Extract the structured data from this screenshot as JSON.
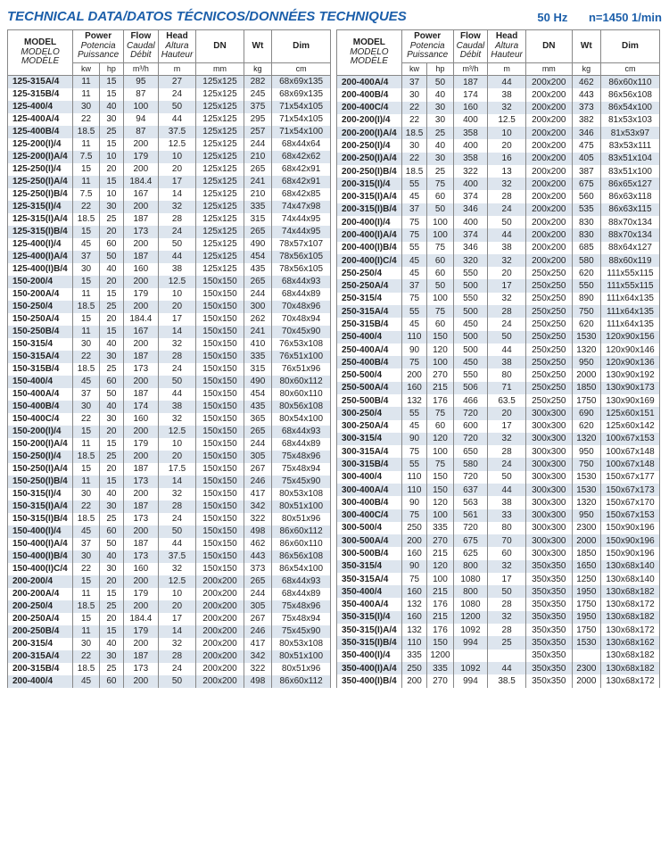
{
  "header": {
    "title": "TECHNICAL DATA/DATOS TÉCNICOS/DONNÉES TECHNIQUES",
    "freq": "50 Hz",
    "rpm": "n=1450 1/min"
  },
  "cols": {
    "model": {
      "en": "MODEL",
      "es": "MODELO",
      "fr": "MODÈLE"
    },
    "power": {
      "en": "Power",
      "es": "Potencia",
      "fr": "Puissance",
      "u1": "kw",
      "u2": "hp"
    },
    "flow": {
      "en": "Flow",
      "es": "Caudal",
      "fr": "Débit",
      "u": "m³/h"
    },
    "head": {
      "en": "Head",
      "es": "Altura",
      "fr": "Hauteur",
      "u": "m"
    },
    "dn": {
      "en": "DN",
      "u": "mm"
    },
    "wt": {
      "en": "Wt",
      "u": "kg"
    },
    "dim": {
      "en": "Dim",
      "u": "cm"
    }
  },
  "left": [
    [
      "125-315A/4",
      11,
      15,
      95,
      27,
      "125x125",
      282,
      "68x69x135"
    ],
    [
      "125-315B/4",
      11,
      15,
      87,
      24,
      "125x125",
      245,
      "68x69x135"
    ],
    [
      "125-400/4",
      30,
      40,
      100,
      50,
      "125x125",
      375,
      "71x54x105"
    ],
    [
      "125-400A/4",
      22,
      30,
      94,
      44,
      "125x125",
      295,
      "71x54x105"
    ],
    [
      "125-400B/4",
      18.5,
      25,
      87,
      37.5,
      "125x125",
      257,
      "71x54x100"
    ],
    [
      "125-200(I)/4",
      11,
      15,
      200,
      12.5,
      "125x125",
      244,
      "68x44x64"
    ],
    [
      "125-200(I)A/4",
      7.5,
      10,
      179,
      10,
      "125x125",
      210,
      "68x42x62"
    ],
    [
      "125-250(I)/4",
      15,
      20,
      200,
      20,
      "125x125",
      265,
      "68x42x91"
    ],
    [
      "125-250(I)A/4",
      11,
      15,
      184.4,
      17,
      "125x125",
      241,
      "68x42x91"
    ],
    [
      "125-250(I)B/4",
      7.5,
      10,
      167,
      14,
      "125x125",
      210,
      "68x42x85"
    ],
    [
      "125-315(I)/4",
      22,
      30,
      200,
      32,
      "125x125",
      335,
      "74x47x98"
    ],
    [
      "125-315(I)A/4",
      18.5,
      25,
      187,
      28,
      "125x125",
      315,
      "74x44x95"
    ],
    [
      "125-315(I)B/4",
      15,
      20,
      173,
      24,
      "125x125",
      265,
      "74x44x95"
    ],
    [
      "125-400(I)/4",
      45,
      60,
      200,
      50,
      "125x125",
      490,
      "78x57x107"
    ],
    [
      "125-400(I)A/4",
      37,
      50,
      187,
      44,
      "125x125",
      454,
      "78x56x105"
    ],
    [
      "125-400(I)B/4",
      30,
      40,
      160,
      38,
      "125x125",
      435,
      "78x56x105"
    ],
    [
      "150-200/4",
      15,
      20,
      200,
      12.5,
      "150x150",
      265,
      "68x44x93"
    ],
    [
      "150-200A/4",
      11,
      15,
      179,
      10,
      "150x150",
      244,
      "68x44x89"
    ],
    [
      "150-250/4",
      18.5,
      25,
      200,
      20,
      "150x150",
      300,
      "70x48x96"
    ],
    [
      "150-250A/4",
      15,
      20,
      184.4,
      17,
      "150x150",
      262,
      "70x48x94"
    ],
    [
      "150-250B/4",
      11,
      15,
      167,
      14,
      "150x150",
      241,
      "70x45x90"
    ],
    [
      "150-315/4",
      30,
      40,
      200,
      32,
      "150x150",
      410,
      "76x53x108"
    ],
    [
      "150-315A/4",
      22,
      30,
      187,
      28,
      "150x150",
      335,
      "76x51x100"
    ],
    [
      "150-315B/4",
      18.5,
      25,
      173,
      24,
      "150x150",
      315,
      "76x51x96"
    ],
    [
      "150-400/4",
      45,
      60,
      200,
      50,
      "150x150",
      490,
      "80x60x112"
    ],
    [
      "150-400A/4",
      37,
      50,
      187,
      44,
      "150x150",
      454,
      "80x60x110"
    ],
    [
      "150-400B/4",
      30,
      40,
      174,
      38,
      "150x150",
      435,
      "80x56x108"
    ],
    [
      "150-400C/4",
      22,
      30,
      160,
      32,
      "150x150",
      365,
      "80x54x100"
    ],
    [
      "150-200(I)/4",
      15,
      20,
      200,
      12.5,
      "150x150",
      265,
      "68x44x93"
    ],
    [
      "150-200(I)A/4",
      11,
      15,
      179,
      10,
      "150x150",
      244,
      "68x44x89"
    ],
    [
      "150-250(I)/4",
      18.5,
      25,
      200,
      20,
      "150x150",
      305,
      "75x48x96"
    ],
    [
      "150-250(I)A/4",
      15,
      20,
      187,
      17.5,
      "150x150",
      267,
      "75x48x94"
    ],
    [
      "150-250(I)B/4",
      11,
      15,
      173,
      14,
      "150x150",
      246,
      "75x45x90"
    ],
    [
      "150-315(I)/4",
      30,
      40,
      200,
      32,
      "150x150",
      417,
      "80x53x108"
    ],
    [
      "150-315(I)A/4",
      22,
      30,
      187,
      28,
      "150x150",
      342,
      "80x51x100"
    ],
    [
      "150-315(I)B/4",
      18.5,
      25,
      173,
      24,
      "150x150",
      322,
      "80x51x96"
    ],
    [
      "150-400(I)/4",
      45,
      60,
      200,
      50,
      "150x150",
      498,
      "86x60x112"
    ],
    [
      "150-400(I)A/4",
      37,
      50,
      187,
      44,
      "150x150",
      462,
      "86x60x110"
    ],
    [
      "150-400(I)B/4",
      30,
      40,
      173,
      37.5,
      "150x150",
      443,
      "86x56x108"
    ],
    [
      "150-400(I)C/4",
      22,
      30,
      160,
      32,
      "150x150",
      373,
      "86x54x100"
    ],
    [
      "200-200/4",
      15,
      20,
      200,
      12.5,
      "200x200",
      265,
      "68x44x93"
    ],
    [
      "200-200A/4",
      11,
      15,
      179,
      10,
      "200x200",
      244,
      "68x44x89"
    ],
    [
      "200-250/4",
      18.5,
      25,
      200,
      20,
      "200x200",
      305,
      "75x48x96"
    ],
    [
      "200-250A/4",
      15,
      20,
      184.4,
      17,
      "200x200",
      267,
      "75x48x94"
    ],
    [
      "200-250B/4",
      11,
      15,
      179,
      14,
      "200x200",
      246,
      "75x45x90"
    ],
    [
      "200-315/4",
      30,
      40,
      200,
      32,
      "200x200",
      417,
      "80x53x108"
    ],
    [
      "200-315A/4",
      22,
      30,
      187,
      28,
      "200x200",
      342,
      "80x51x100"
    ],
    [
      "200-315B/4",
      18.5,
      25,
      173,
      24,
      "200x200",
      322,
      "80x51x96"
    ],
    [
      "200-400/4",
      45,
      60,
      200,
      50,
      "200x200",
      498,
      "86x60x112"
    ]
  ],
  "right": [
    [
      "200-400A/4",
      37,
      50,
      187,
      44,
      "200x200",
      462,
      "86x60x110"
    ],
    [
      "200-400B/4",
      30,
      40,
      174,
      38,
      "200x200",
      443,
      "86x56x108"
    ],
    [
      "200-400C/4",
      22,
      30,
      160,
      32,
      "200x200",
      373,
      "86x54x100"
    ],
    [
      "200-200(I)/4",
      22,
      30,
      400,
      12.5,
      "200x200",
      382,
      "81x53x103"
    ],
    [
      "200-200(I)A/4",
      18.5,
      25,
      358,
      10,
      "200x200",
      346,
      "81x53x97"
    ],
    [
      "200-250(I)/4",
      30,
      40,
      400,
      20,
      "200x200",
      475,
      "83x53x111"
    ],
    [
      "200-250(I)A/4",
      22,
      30,
      358,
      16,
      "200x200",
      405,
      "83x51x104"
    ],
    [
      "200-250(I)B/4",
      18.5,
      25,
      322,
      13,
      "200x200",
      387,
      "83x51x100"
    ],
    [
      "200-315(I)/4",
      55,
      75,
      400,
      32,
      "200x200",
      675,
      "86x65x127"
    ],
    [
      "200-315(I)A/4",
      45,
      60,
      374,
      28,
      "200x200",
      560,
      "86x63x118"
    ],
    [
      "200-315(I)B/4",
      37,
      50,
      346,
      24,
      "200x200",
      535,
      "86x63x115"
    ],
    [
      "200-400(I)/4",
      75,
      100,
      400,
      50,
      "200x200",
      830,
      "88x70x134"
    ],
    [
      "200-400(I)A/4",
      75,
      100,
      374,
      44,
      "200x200",
      830,
      "88x70x134"
    ],
    [
      "200-400(I)B/4",
      55,
      75,
      346,
      38,
      "200x200",
      685,
      "88x64x127"
    ],
    [
      "200-400(I)C/4",
      45,
      60,
      320,
      32,
      "200x200",
      580,
      "88x60x119"
    ],
    [
      "250-250/4",
      45,
      60,
      550,
      20,
      "250x250",
      620,
      "111x55x115"
    ],
    [
      "250-250A/4",
      37,
      50,
      500,
      17,
      "250x250",
      550,
      "111x55x115"
    ],
    [
      "250-315/4",
      75,
      100,
      550,
      32,
      "250x250",
      890,
      "111x64x135"
    ],
    [
      "250-315A/4",
      55,
      75,
      500,
      28,
      "250x250",
      750,
      "111x64x135"
    ],
    [
      "250-315B/4",
      45,
      60,
      450,
      24,
      "250x250",
      620,
      "111x64x135"
    ],
    [
      "250-400/4",
      110,
      150,
      500,
      50,
      "250x250",
      1530,
      "120x90x156"
    ],
    [
      "250-400A/4",
      90,
      120,
      500,
      44,
      "250x250",
      1320,
      "120x90x146"
    ],
    [
      "250-400B/4",
      75,
      100,
      450,
      38,
      "250x250",
      950,
      "120x90x136"
    ],
    [
      "250-500/4",
      200,
      270,
      550,
      80,
      "250x250",
      2000,
      "130x90x192"
    ],
    [
      "250-500A/4",
      160,
      215,
      506,
      71,
      "250x250",
      1850,
      "130x90x173"
    ],
    [
      "250-500B/4",
      132,
      176,
      466,
      63.5,
      "250x250",
      1750,
      "130x90x169"
    ],
    [
      "300-250/4",
      55,
      75,
      720,
      20,
      "300x300",
      690,
      "125x60x151"
    ],
    [
      "300-250A/4",
      45,
      60,
      600,
      17,
      "300x300",
      620,
      "125x60x142"
    ],
    [
      "300-315/4",
      90,
      120,
      720,
      32,
      "300x300",
      1320,
      "100x67x153"
    ],
    [
      "300-315A/4",
      75,
      100,
      650,
      28,
      "300x300",
      950,
      "100x67x148"
    ],
    [
      "300-315B/4",
      55,
      75,
      580,
      24,
      "300x300",
      750,
      "100x67x148"
    ],
    [
      "300-400/4",
      110,
      150,
      720,
      50,
      "300x300",
      1530,
      "150x67x177"
    ],
    [
      "300-400A/4",
      110,
      150,
      637,
      44,
      "300x300",
      1530,
      "150x67x173"
    ],
    [
      "300-400B/4",
      90,
      120,
      563,
      38,
      "300x300",
      1320,
      "150x67x170"
    ],
    [
      "300-400C/4",
      75,
      100,
      561,
      33,
      "300x300",
      950,
      "150x67x153"
    ],
    [
      "300-500/4",
      250,
      335,
      720,
      80,
      "300x300",
      2300,
      "150x90x196"
    ],
    [
      "300-500A/4",
      200,
      270,
      675,
      70,
      "300x300",
      2000,
      "150x90x196"
    ],
    [
      "300-500B/4",
      160,
      215,
      625,
      60,
      "300x300",
      1850,
      "150x90x196"
    ],
    [
      "350-315/4",
      90,
      120,
      800,
      32,
      "350x350",
      1650,
      "130x68x140"
    ],
    [
      "350-315A/4",
      75,
      100,
      1080,
      17,
      "350x350",
      1250,
      "130x68x140"
    ],
    [
      "350-400/4",
      160,
      215,
      800,
      50,
      "350x350",
      1950,
      "130x68x182"
    ],
    [
      "350-400A/4",
      132,
      176,
      1080,
      28,
      "350x350",
      1750,
      "130x68x172"
    ],
    [
      "350-315(I)/4",
      160,
      215,
      1200,
      32,
      "350x350",
      1950,
      "130x68x182"
    ],
    [
      "350-315(I)A/4",
      132,
      176,
      1092,
      28,
      "350x350",
      1750,
      "130x68x172"
    ],
    [
      "350-315(I)B/4",
      110,
      150,
      994,
      25,
      "350x350",
      1530,
      "130x68x162"
    ],
    [
      "350-400(I)/4",
      335,
      1200,
      "",
      "",
      "350x350",
      "",
      "130x68x182"
    ],
    [
      "350-400(I)A/4",
      250,
      335,
      1092,
      44,
      "350x350",
      2300,
      "130x68x182"
    ],
    [
      "350-400(I)B/4",
      200,
      270,
      994,
      38.5,
      "350x350",
      2000,
      "130x68x172"
    ]
  ]
}
